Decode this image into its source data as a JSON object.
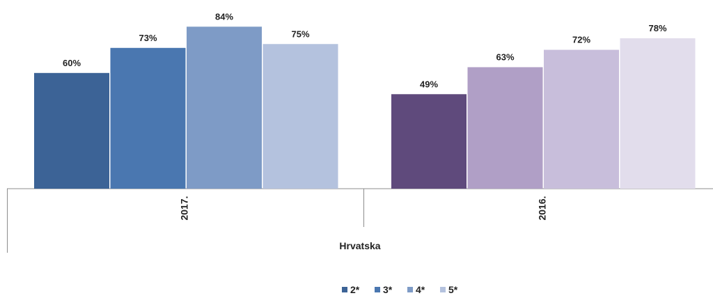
{
  "chart_data": {
    "type": "bar",
    "category_label": "Hrvatska",
    "groups": [
      {
        "label": "2017.",
        "bars": [
          {
            "series": "2*",
            "value": 60,
            "label": "60%",
            "color": "#3C6396"
          },
          {
            "series": "3*",
            "value": 73,
            "label": "73%",
            "color": "#4A77B0"
          },
          {
            "series": "4*",
            "value": 84,
            "label": "84%",
            "color": "#7E9BC6"
          },
          {
            "series": "5*",
            "value": 75,
            "label": "75%",
            "color": "#B4C2DE"
          }
        ]
      },
      {
        "label": "2016.",
        "bars": [
          {
            "series": "2*",
            "value": 49,
            "label": "49%",
            "color": "#5F4A7C"
          },
          {
            "series": "3*",
            "value": 63,
            "label": "63%",
            "color": "#B09FC6"
          },
          {
            "series": "4*",
            "value": 72,
            "label": "72%",
            "color": "#C8BEDB"
          },
          {
            "series": "5*",
            "value": 78,
            "label": "78%",
            "color": "#E2DDEC"
          }
        ]
      }
    ],
    "legend": {
      "position": "bottom",
      "items": [
        {
          "name": "2*",
          "color": "#3C6396"
        },
        {
          "name": "3*",
          "color": "#4A77B0"
        },
        {
          "name": "4*",
          "color": "#7E9BC6"
        },
        {
          "name": "5*",
          "color": "#B4C2DE"
        }
      ]
    },
    "grid": false,
    "ylim": [
      0,
      100
    ]
  }
}
